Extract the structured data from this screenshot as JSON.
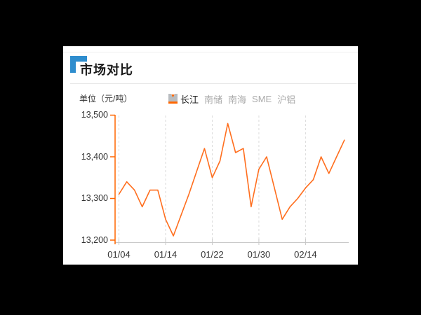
{
  "window": {
    "letterbox_color": "#000000",
    "panel_color": "#ffffff"
  },
  "header": {
    "title": "市场对比",
    "accent_color": "#2e8dce"
  },
  "legend": {
    "items": [
      {
        "label": "长江",
        "active": true,
        "color": "#ff6600"
      },
      {
        "label": "南储",
        "active": false,
        "color": "#b9bdc1"
      },
      {
        "label": "南海",
        "active": false,
        "color": "#b9bdc1"
      },
      {
        "label": "SME",
        "active": false,
        "color": "#b9bdc1"
      },
      {
        "label": "沪铝",
        "active": false,
        "color": "#b9bdc1"
      }
    ]
  },
  "chart_data": {
    "type": "line",
    "title": "市场对比",
    "unit_label": "单位（元/吨）",
    "series": [
      {
        "name": "长江",
        "color": "#ff6e1e",
        "values": [
          13310,
          13340,
          13320,
          13280,
          13320,
          13320,
          13250,
          13210,
          13260,
          13310,
          13365,
          13420,
          13350,
          13390,
          13480,
          13410,
          13420,
          13280,
          13370,
          13400,
          13325,
          13250,
          13280,
          13300,
          13325,
          13345,
          13400,
          13360,
          13400,
          13440
        ]
      }
    ],
    "x_tick_labels": [
      "01/04",
      "01/14",
      "01/22",
      "01/30",
      "02/14"
    ],
    "x_tick_indices": [
      0,
      6,
      12,
      18,
      24
    ],
    "y_tick_labels": [
      "13,500",
      "13,400",
      "13,300",
      "13,200"
    ],
    "y_tick_values": [
      13500,
      13400,
      13300,
      13200
    ],
    "ylim": [
      13200,
      13500
    ],
    "axis_color": "#ff6600",
    "grid": "vertical-dashed",
    "legend_position": "top"
  }
}
